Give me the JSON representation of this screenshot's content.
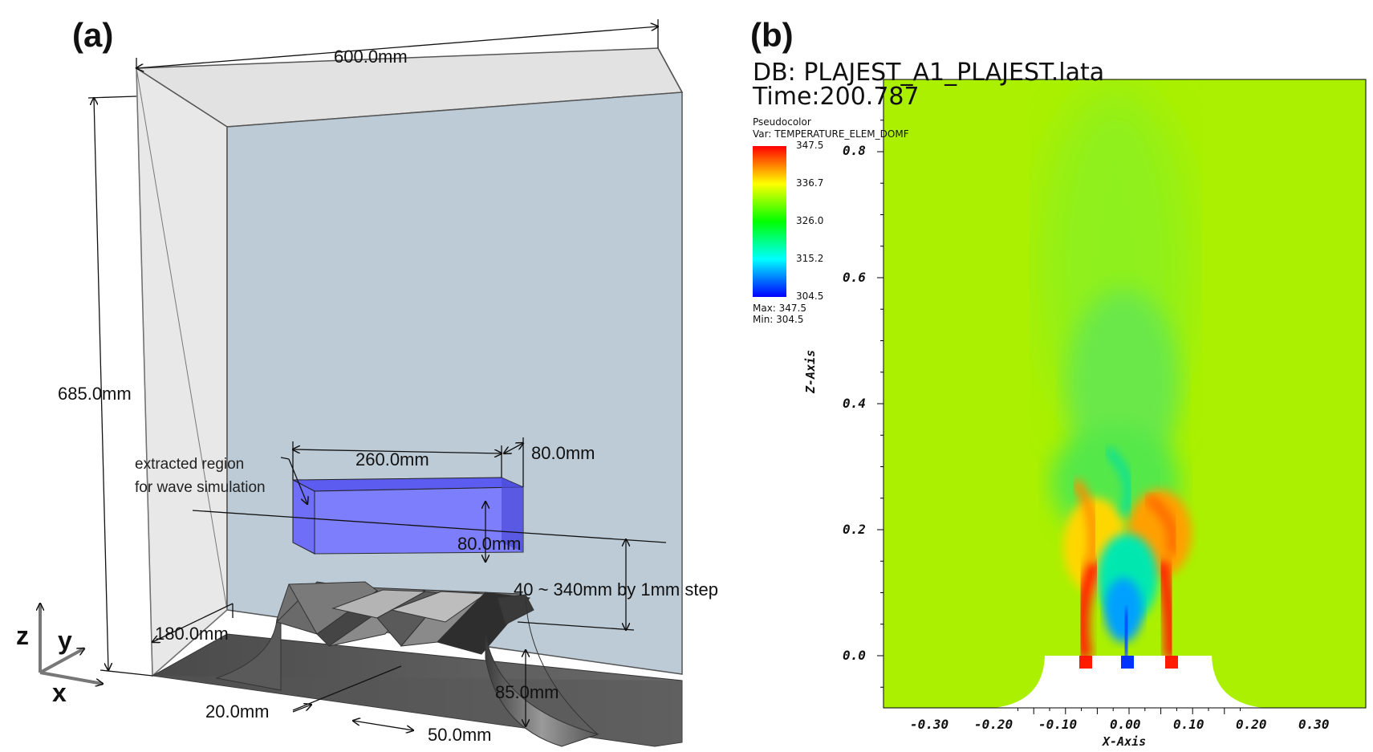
{
  "panel_a": {
    "label": "(a)",
    "dims": {
      "width": "600.0mm",
      "height": "685.0mm",
      "box_len": "260.0mm",
      "box_depth": "80.0mm",
      "box_height": "80.0mm",
      "gap_range": "40 ~ 340mm by 1mm step",
      "depth": "180.0mm",
      "slot": "20.0mm",
      "pitch": "50.0mm",
      "radius": "85.0mm"
    },
    "annotation_line1": "extracted region",
    "annotation_line2": "for wave simulation",
    "axes": {
      "z": "z",
      "y": "y",
      "x": "x"
    }
  },
  "panel_b": {
    "label": "(b)",
    "db": "DB: PLAJEST_A1_PLAJEST.lata",
    "time": "Time:200.787",
    "legend": {
      "type": "Pseudocolor",
      "var": "Var: TEMPERATURE_ELEM_DOMF",
      "ticks": [
        "347.5",
        "336.7",
        "326.0",
        "315.2",
        "304.5"
      ],
      "max_label": "Max:  347.5",
      "min_label": "Min:  304.5",
      "colors": [
        "#ff0000",
        "#ffff00",
        "#00ff00",
        "#00ffff",
        "#0000ff"
      ]
    },
    "x_axis_title": "X-Axis",
    "z_axis_title": "Z-Axis",
    "x_ticks": [
      "-0.30",
      "-0.20",
      "-0.10",
      "0.00",
      "0.10",
      "0.20",
      "0.30"
    ],
    "z_ticks": [
      "0.8",
      "0.6",
      "0.4",
      "0.2",
      "0.0"
    ],
    "background_color": "#aaf000"
  }
}
